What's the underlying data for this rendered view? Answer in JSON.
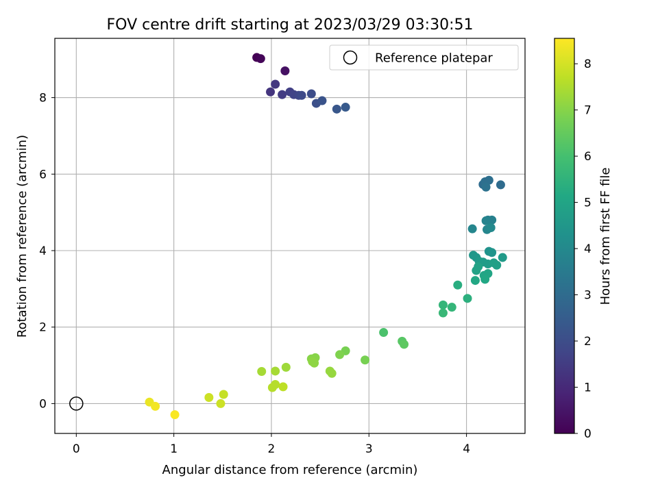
{
  "chart_data": {
    "type": "scatter",
    "title": "FOV centre drift starting at 2023/03/29 03:30:51",
    "xlabel": "Angular distance from reference (arcmin)",
    "ylabel": "Rotation from reference (arcmin)",
    "xlim": [
      -0.22,
      4.6
    ],
    "ylim": [
      -0.78,
      9.55
    ],
    "xticks": [
      0,
      1,
      2,
      3,
      4
    ],
    "yticks": [
      0,
      2,
      4,
      6,
      8
    ],
    "grid": true,
    "legend": {
      "placement": "top-right",
      "entries": [
        "Reference platepar"
      ]
    },
    "reference_point": {
      "x": 0,
      "y": 0,
      "label": "Reference platepar"
    },
    "colorbar": {
      "label": "Hours from first FF file",
      "range": [
        0,
        8.55
      ],
      "ticks": [
        0,
        1,
        2,
        3,
        4,
        5,
        6,
        7,
        8
      ],
      "colormap": "viridis"
    },
    "series": [
      {
        "points": [
          {
            "x": 1.85,
            "y": 9.05,
            "c": 0.0
          },
          {
            "x": 1.89,
            "y": 9.02,
            "c": 0.1
          },
          {
            "x": 2.14,
            "y": 8.7,
            "c": 0.4
          },
          {
            "x": 1.99,
            "y": 8.15,
            "c": 1.3
          },
          {
            "x": 2.04,
            "y": 8.35,
            "c": 1.4
          },
          {
            "x": 2.11,
            "y": 8.08,
            "c": 1.5
          },
          {
            "x": 2.19,
            "y": 8.15,
            "c": 1.6
          },
          {
            "x": 2.23,
            "y": 8.08,
            "c": 1.7
          },
          {
            "x": 2.28,
            "y": 8.06,
            "c": 1.8
          },
          {
            "x": 2.31,
            "y": 8.06,
            "c": 1.9
          },
          {
            "x": 2.41,
            "y": 8.1,
            "c": 2.0
          },
          {
            "x": 2.46,
            "y": 7.85,
            "c": 2.1
          },
          {
            "x": 2.52,
            "y": 7.92,
            "c": 2.2
          },
          {
            "x": 2.67,
            "y": 7.7,
            "c": 2.3
          },
          {
            "x": 2.76,
            "y": 7.75,
            "c": 2.4
          },
          {
            "x": 4.35,
            "y": 5.72,
            "c": 3.0
          },
          {
            "x": 4.17,
            "y": 5.73,
            "c": 3.0
          },
          {
            "x": 4.19,
            "y": 5.8,
            "c": 3.1
          },
          {
            "x": 4.23,
            "y": 5.84,
            "c": 3.1
          },
          {
            "x": 4.2,
            "y": 5.66,
            "c": 3.2
          },
          {
            "x": 4.22,
            "y": 4.8,
            "c": 3.7
          },
          {
            "x": 4.26,
            "y": 4.8,
            "c": 3.7
          },
          {
            "x": 4.2,
            "y": 4.78,
            "c": 3.8
          },
          {
            "x": 4.06,
            "y": 4.57,
            "c": 3.9
          },
          {
            "x": 4.21,
            "y": 4.55,
            "c": 3.9
          },
          {
            "x": 4.25,
            "y": 4.6,
            "c": 4.0
          },
          {
            "x": 4.23,
            "y": 3.98,
            "c": 4.3
          },
          {
            "x": 4.26,
            "y": 3.95,
            "c": 4.4
          },
          {
            "x": 4.07,
            "y": 3.88,
            "c": 4.5
          },
          {
            "x": 4.1,
            "y": 3.82,
            "c": 4.5
          },
          {
            "x": 4.37,
            "y": 3.82,
            "c": 4.6
          },
          {
            "x": 4.13,
            "y": 3.72,
            "c": 4.6
          },
          {
            "x": 4.17,
            "y": 3.7,
            "c": 4.7
          },
          {
            "x": 4.22,
            "y": 3.65,
            "c": 4.7
          },
          {
            "x": 4.28,
            "y": 3.68,
            "c": 4.8
          },
          {
            "x": 4.31,
            "y": 3.62,
            "c": 4.8
          },
          {
            "x": 4.12,
            "y": 3.58,
            "c": 4.9
          },
          {
            "x": 4.1,
            "y": 3.48,
            "c": 4.9
          },
          {
            "x": 4.22,
            "y": 3.4,
            "c": 5.0
          },
          {
            "x": 4.18,
            "y": 3.35,
            "c": 5.0
          },
          {
            "x": 4.19,
            "y": 3.25,
            "c": 5.1
          },
          {
            "x": 4.09,
            "y": 3.22,
            "c": 5.1
          },
          {
            "x": 3.91,
            "y": 3.1,
            "c": 5.3
          },
          {
            "x": 4.01,
            "y": 2.75,
            "c": 5.4
          },
          {
            "x": 3.76,
            "y": 2.58,
            "c": 5.6
          },
          {
            "x": 3.85,
            "y": 2.52,
            "c": 5.6
          },
          {
            "x": 3.76,
            "y": 2.37,
            "c": 5.7
          },
          {
            "x": 3.15,
            "y": 1.86,
            "c": 6.1
          },
          {
            "x": 3.34,
            "y": 1.63,
            "c": 6.3
          },
          {
            "x": 3.36,
            "y": 1.55,
            "c": 6.4
          },
          {
            "x": 2.76,
            "y": 1.38,
            "c": 6.8
          },
          {
            "x": 2.7,
            "y": 1.28,
            "c": 6.9
          },
          {
            "x": 2.96,
            "y": 1.14,
            "c": 6.8
          },
          {
            "x": 2.45,
            "y": 1.2,
            "c": 7.0
          },
          {
            "x": 2.41,
            "y": 1.17,
            "c": 7.0
          },
          {
            "x": 2.42,
            "y": 1.1,
            "c": 7.1
          },
          {
            "x": 2.44,
            "y": 1.06,
            "c": 7.1
          },
          {
            "x": 2.6,
            "y": 0.85,
            "c": 7.2
          },
          {
            "x": 2.62,
            "y": 0.79,
            "c": 7.2
          },
          {
            "x": 1.9,
            "y": 0.84,
            "c": 7.4
          },
          {
            "x": 2.04,
            "y": 0.85,
            "c": 7.4
          },
          {
            "x": 2.15,
            "y": 0.95,
            "c": 7.3
          },
          {
            "x": 2.04,
            "y": 0.5,
            "c": 7.6
          },
          {
            "x": 2.01,
            "y": 0.42,
            "c": 7.6
          },
          {
            "x": 2.12,
            "y": 0.44,
            "c": 7.7
          },
          {
            "x": 1.51,
            "y": 0.24,
            "c": 7.8
          },
          {
            "x": 1.36,
            "y": 0.16,
            "c": 7.9
          },
          {
            "x": 1.48,
            "y": 0.0,
            "c": 7.9
          },
          {
            "x": 0.75,
            "y": 0.04,
            "c": 8.3
          },
          {
            "x": 0.81,
            "y": -0.07,
            "c": 8.4
          },
          {
            "x": 1.01,
            "y": -0.29,
            "c": 8.5
          }
        ]
      }
    ]
  }
}
